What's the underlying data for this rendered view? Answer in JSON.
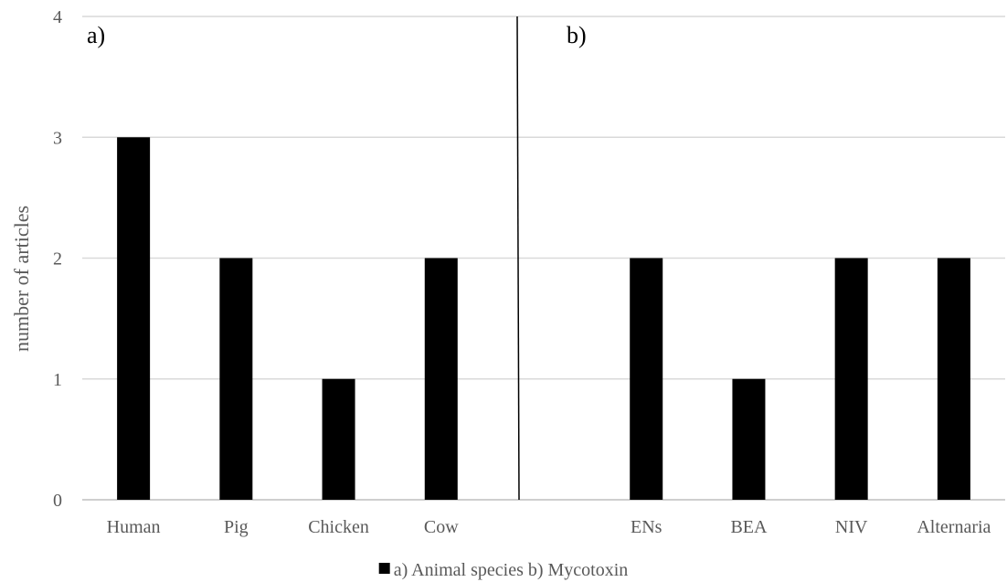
{
  "chart_data": {
    "type": "bar",
    "title": "",
    "ylabel": "number of articles",
    "xlabel": "",
    "ylim": [
      0,
      4
    ],
    "yticks": [
      "0",
      "1",
      "2",
      "3",
      "4"
    ],
    "grid": true,
    "legend_position": "bottom",
    "legend_label": "a) Animal species  b) Mycotoxin",
    "bar_color": "#000000",
    "panels": [
      {
        "label": "a)",
        "categories": [
          "Human",
          "Pig",
          "Chicken",
          "Cow"
        ],
        "values": [
          3,
          2,
          1,
          2
        ]
      },
      {
        "label": "b)",
        "categories": [
          "ENs",
          "BEA",
          "NIV",
          "Alternaria"
        ],
        "values": [
          2,
          1,
          2,
          2
        ]
      }
    ]
  }
}
